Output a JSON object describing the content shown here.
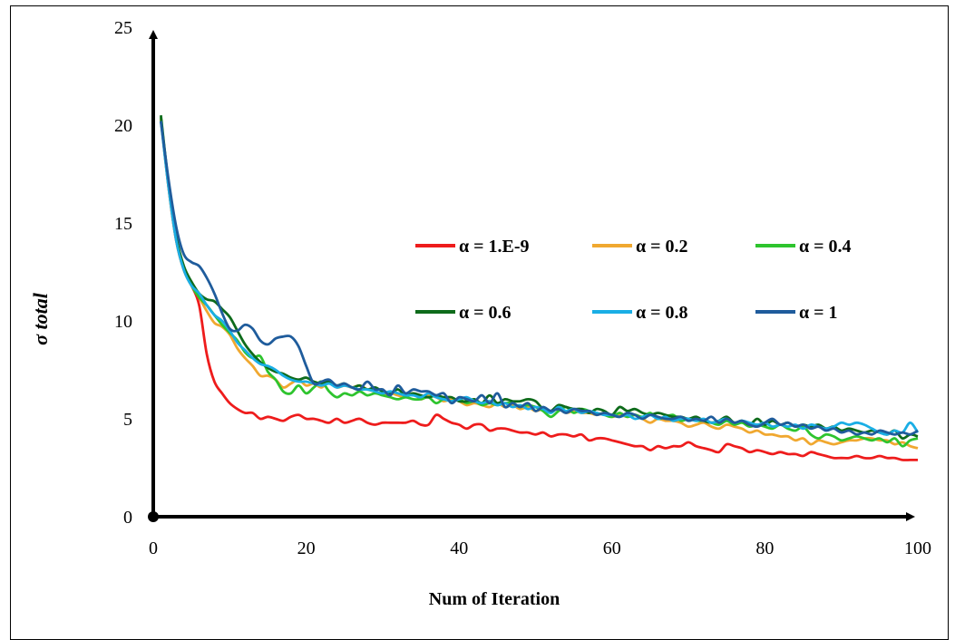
{
  "chart_data": {
    "type": "line",
    "title": "",
    "xlabel": "Num of Iteration",
    "ylabel": "σ total",
    "xlim": [
      0,
      100
    ],
    "ylim": [
      0,
      25
    ],
    "xticks": [
      0,
      20,
      40,
      60,
      80,
      100
    ],
    "yticks": [
      0,
      5,
      10,
      15,
      20,
      25
    ],
    "grid": false,
    "legend_position": "center-right",
    "x_start": 1,
    "series": [
      {
        "name": "α = 1.E-9",
        "color": "#ee1c1c",
        "values": [
          20.3,
          16.8,
          14.1,
          12.6,
          11.8,
          10.8,
          8.3,
          6.9,
          6.3,
          5.8,
          5.5,
          5.3,
          5.3,
          5.0,
          5.1,
          5.0,
          4.9,
          5.1,
          5.2,
          5.0,
          5.0,
          4.9,
          4.8,
          5.0,
          4.8,
          4.9,
          5.0,
          4.8,
          4.7,
          4.8,
          4.8,
          4.8,
          4.8,
          4.9,
          4.7,
          4.7,
          5.2,
          5.0,
          4.8,
          4.7,
          4.5,
          4.7,
          4.7,
          4.4,
          4.5,
          4.5,
          4.4,
          4.3,
          4.3,
          4.2,
          4.3,
          4.1,
          4.2,
          4.2,
          4.1,
          4.2,
          3.9,
          4.0,
          4.0,
          3.9,
          3.8,
          3.7,
          3.6,
          3.6,
          3.4,
          3.6,
          3.5,
          3.6,
          3.6,
          3.8,
          3.6,
          3.5,
          3.4,
          3.3,
          3.7,
          3.6,
          3.5,
          3.3,
          3.4,
          3.3,
          3.2,
          3.3,
          3.2,
          3.2,
          3.1,
          3.3,
          3.2,
          3.1,
          3.0,
          3.0,
          3.0,
          3.1,
          3.0,
          3.0,
          3.1,
          3.0,
          3.0,
          2.9,
          2.9,
          2.9
        ]
      },
      {
        "name": "α = 0.2",
        "color": "#f0a830",
        "values": [
          20.3,
          16.8,
          14.1,
          12.6,
          11.8,
          11.2,
          10.5,
          9.9,
          9.7,
          9.3,
          8.6,
          8.1,
          7.7,
          7.2,
          7.2,
          7.0,
          6.6,
          6.8,
          7.0,
          6.7,
          6.8,
          6.6,
          6.9,
          6.6,
          6.7,
          6.6,
          6.7,
          6.5,
          6.4,
          6.2,
          6.3,
          6.2,
          6.1,
          6.3,
          6.0,
          6.2,
          6.1,
          5.9,
          6.0,
          5.9,
          5.7,
          5.8,
          5.7,
          5.6,
          5.8,
          5.6,
          5.7,
          5.5,
          5.6,
          5.4,
          5.5,
          5.4,
          5.5,
          5.3,
          5.4,
          5.3,
          5.3,
          5.2,
          5.3,
          5.1,
          5.2,
          5.1,
          5.2,
          5.0,
          4.8,
          5.0,
          4.9,
          4.9,
          4.8,
          4.6,
          4.7,
          4.8,
          4.6,
          4.5,
          4.7,
          4.6,
          4.5,
          4.3,
          4.4,
          4.2,
          4.2,
          4.1,
          4.1,
          3.9,
          4.0,
          3.7,
          3.9,
          3.8,
          3.7,
          3.8,
          3.9,
          3.9,
          4.0,
          4.0,
          3.9,
          3.9,
          3.7,
          3.8,
          3.6,
          3.5
        ]
      },
      {
        "name": "α = 0.4",
        "color": "#2ec42e",
        "values": [
          20.4,
          16.9,
          14.2,
          12.7,
          11.8,
          11.2,
          10.8,
          10.3,
          9.8,
          9.4,
          9.0,
          8.4,
          8.1,
          8.2,
          7.4,
          7.0,
          6.4,
          6.3,
          6.7,
          6.3,
          6.6,
          6.9,
          6.4,
          6.1,
          6.3,
          6.2,
          6.4,
          6.2,
          6.3,
          6.2,
          6.1,
          6.0,
          6.1,
          6.0,
          6.0,
          6.1,
          5.8,
          6.0,
          5.9,
          6.0,
          5.8,
          5.9,
          5.7,
          5.8,
          5.7,
          5.8,
          5.8,
          5.6,
          5.7,
          5.6,
          5.4,
          5.1,
          5.4,
          5.6,
          5.3,
          5.5,
          5.4,
          5.3,
          5.2,
          5.1,
          5.3,
          5.1,
          5.2,
          5.1,
          5.3,
          5.0,
          5.1,
          5.2,
          4.9,
          5.0,
          4.9,
          4.9,
          4.8,
          4.7,
          4.9,
          4.7,
          4.8,
          4.6,
          4.7,
          4.6,
          4.5,
          4.7,
          4.5,
          4.4,
          4.6,
          4.2,
          4.0,
          4.2,
          4.1,
          3.9,
          4.0,
          4.1,
          4.0,
          3.9,
          4.0,
          3.8,
          4.0,
          3.6,
          3.9,
          4.0
        ]
      },
      {
        "name": "α = 0.6",
        "color": "#0e6b1b",
        "values": [
          20.5,
          17.0,
          14.3,
          12.8,
          12.0,
          11.4,
          11.1,
          11.0,
          10.6,
          10.2,
          9.5,
          8.8,
          8.3,
          7.9,
          7.6,
          7.4,
          7.3,
          7.1,
          7.0,
          7.1,
          6.9,
          6.8,
          6.9,
          6.7,
          6.8,
          6.6,
          6.7,
          6.5,
          6.6,
          6.4,
          6.3,
          6.5,
          6.2,
          6.3,
          6.2,
          6.1,
          6.2,
          6.1,
          6.1,
          5.9,
          5.9,
          6.0,
          5.8,
          6.2,
          5.8,
          6.0,
          5.9,
          5.9,
          6.0,
          5.9,
          5.5,
          5.4,
          5.7,
          5.6,
          5.5,
          5.5,
          5.3,
          5.5,
          5.4,
          5.2,
          5.6,
          5.4,
          5.5,
          5.3,
          5.2,
          5.3,
          5.2,
          5.1,
          5.1,
          5.0,
          5.1,
          4.9,
          4.8,
          4.9,
          5.1,
          4.8,
          4.9,
          4.7,
          5.0,
          4.7,
          4.9,
          4.7,
          4.8,
          4.6,
          4.7,
          4.6,
          4.7,
          4.5,
          4.6,
          4.4,
          4.5,
          4.4,
          4.3,
          4.4,
          4.3,
          4.2,
          4.4,
          4.0,
          4.2,
          4.1
        ]
      },
      {
        "name": "α = 0.8",
        "color": "#1aaee5",
        "values": [
          20.2,
          16.8,
          14.1,
          12.6,
          11.8,
          11.4,
          10.8,
          10.3,
          10.0,
          9.5,
          8.9,
          8.5,
          8.1,
          7.8,
          7.7,
          7.5,
          7.2,
          7.0,
          6.9,
          6.9,
          6.8,
          6.7,
          6.8,
          6.6,
          6.7,
          6.6,
          6.5,
          6.5,
          6.4,
          6.3,
          6.4,
          6.3,
          6.2,
          6.2,
          6.1,
          6.3,
          6.1,
          6.0,
          5.9,
          6.0,
          6.1,
          5.9,
          5.8,
          5.9,
          5.7,
          5.8,
          5.6,
          5.7,
          5.5,
          5.6,
          5.5,
          5.3,
          5.6,
          5.4,
          5.5,
          5.3,
          5.4,
          5.3,
          5.2,
          5.2,
          5.1,
          5.2,
          5.0,
          5.1,
          5.2,
          5.0,
          5.1,
          4.9,
          5.0,
          5.0,
          4.9,
          5.0,
          4.8,
          4.9,
          5.0,
          4.8,
          4.9,
          4.8,
          4.7,
          4.8,
          4.6,
          4.7,
          4.6,
          4.7,
          4.5,
          4.7,
          4.6,
          4.5,
          4.6,
          4.8,
          4.7,
          4.8,
          4.7,
          4.5,
          4.3,
          4.2,
          4.4,
          4.3,
          4.8,
          4.3
        ]
      },
      {
        "name": "α = 1",
        "color": "#1f5c9c",
        "values": [
          20.2,
          17.2,
          14.8,
          13.4,
          13.0,
          12.8,
          12.2,
          11.4,
          10.4,
          9.6,
          9.5,
          9.8,
          9.6,
          9.0,
          8.8,
          9.1,
          9.2,
          9.2,
          8.7,
          7.7,
          6.8,
          6.9,
          7.0,
          6.7,
          6.8,
          6.6,
          6.5,
          6.9,
          6.5,
          6.5,
          6.2,
          6.7,
          6.3,
          6.5,
          6.4,
          6.4,
          6.2,
          6.3,
          5.8,
          6.1,
          6.0,
          5.9,
          6.2,
          5.8,
          6.3,
          5.6,
          5.8,
          5.6,
          5.8,
          5.4,
          5.6,
          5.4,
          5.5,
          5.3,
          5.5,
          5.4,
          5.4,
          5.2,
          5.3,
          5.2,
          5.1,
          5.3,
          5.2,
          5.0,
          5.2,
          5.1,
          5.0,
          5.0,
          5.1,
          4.9,
          5.0,
          4.9,
          5.1,
          4.8,
          5.0,
          4.8,
          4.9,
          4.7,
          4.6,
          4.8,
          5.0,
          4.7,
          4.8,
          4.6,
          4.7,
          4.5,
          4.6,
          4.4,
          4.5,
          4.3,
          4.4,
          4.2,
          4.3,
          4.2,
          4.4,
          4.3,
          4.2,
          4.3,
          4.2,
          4.4
        ]
      }
    ]
  }
}
